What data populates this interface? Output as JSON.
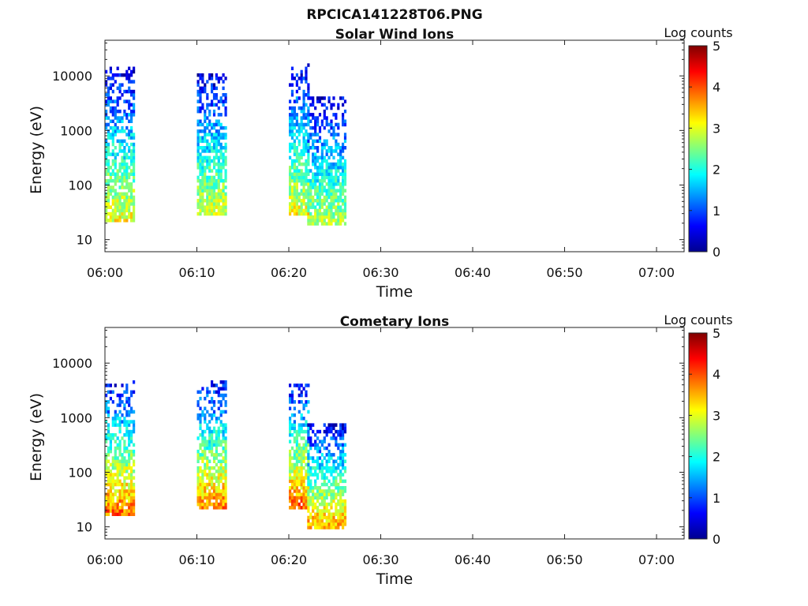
{
  "figure_title": "RPCICA141228T06.PNG",
  "chart_data": [
    {
      "type": "heatmap",
      "title": "Solar Wind Ions",
      "xlabel": "Time",
      "ylabel": "Energy (eV)",
      "y_scale": "log",
      "ylim": [
        6,
        45000
      ],
      "xlim": [
        "06:00",
        "07:03"
      ],
      "x_ticks": [
        "06:00",
        "06:10",
        "06:20",
        "06:30",
        "06:40",
        "06:50",
        "07:00"
      ],
      "y_ticks": [
        "10",
        "100",
        "1000",
        "10000"
      ],
      "colorbar": {
        "label": "Log counts",
        "range": [
          0,
          5
        ],
        "ticks": [
          "0",
          "1",
          "2",
          "3",
          "4",
          "5"
        ],
        "colormap": "jet"
      },
      "grid": false,
      "bursts": [
        {
          "start": "06:00",
          "end": "06:03",
          "emin": 20,
          "emax": 13000,
          "peak_level": 3.1
        },
        {
          "start": "06:10",
          "end": "06:13",
          "emin": 25,
          "emax": 10000,
          "peak_level": 3.0
        },
        {
          "start": "06:20",
          "end": "06:22",
          "emin": 25,
          "emax": 15000,
          "peak_level": 3.1
        },
        {
          "start": "06:22",
          "end": "06:26",
          "emin": 18,
          "emax": 4000,
          "peak_level": 2.8
        }
      ]
    },
    {
      "type": "heatmap",
      "title": "Cometary Ions",
      "xlabel": "Time",
      "ylabel": "Energy (eV)",
      "y_scale": "log",
      "ylim": [
        6,
        45000
      ],
      "xlim": [
        "06:00",
        "07:03"
      ],
      "x_ticks": [
        "06:00",
        "06:10",
        "06:20",
        "06:30",
        "06:40",
        "06:50",
        "07:00"
      ],
      "y_ticks": [
        "10",
        "100",
        "1000",
        "10000"
      ],
      "colorbar": {
        "label": "Log counts",
        "range": [
          0,
          5
        ],
        "ticks": [
          "0",
          "1",
          "2",
          "3",
          "4",
          "5"
        ],
        "colormap": "jet"
      },
      "grid": false,
      "bursts": [
        {
          "start": "06:00",
          "end": "06:03",
          "emin": 15,
          "emax": 4500,
          "peak_level": 3.9
        },
        {
          "start": "06:10",
          "end": "06:13",
          "emin": 20,
          "emax": 4500,
          "peak_level": 3.8
        },
        {
          "start": "06:20",
          "end": "06:22",
          "emin": 20,
          "emax": 4200,
          "peak_level": 3.9
        },
        {
          "start": "06:22",
          "end": "06:26",
          "emin": 8,
          "emax": 700,
          "peak_level": 3.7
        }
      ]
    }
  ]
}
